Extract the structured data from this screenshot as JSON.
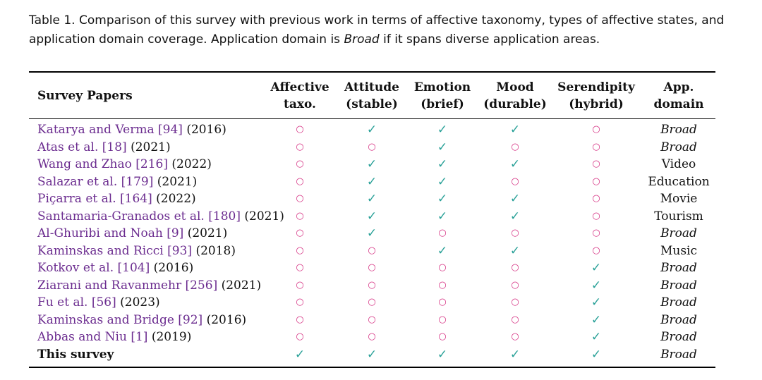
{
  "caption": {
    "part1": "Table 1.  Comparison of this survey with previous work in terms of affective taxonomy, types of affective states, and application domain coverage. Application domain is ",
    "emph": "Broad",
    "part2": " if it spans diverse application areas."
  },
  "colors": {
    "check": "#2aa198",
    "circle": "#d63384",
    "citation": "#6b2c8f"
  },
  "symbols": {
    "check": "✓",
    "circle": "○"
  },
  "headers": {
    "paper": "Survey Papers",
    "columns": [
      {
        "line1": "Affective",
        "line2": "taxo."
      },
      {
        "line1": "Attitude",
        "line2": "(stable)"
      },
      {
        "line1": "Emotion",
        "line2": "(brief)"
      },
      {
        "line1": "Mood",
        "line2": "(durable)"
      },
      {
        "line1": "Serendipity",
        "line2": "(hybrid)"
      },
      {
        "line1": "App.",
        "line2": "domain"
      }
    ]
  },
  "rows": [
    {
      "name": "Katarya and Verma",
      "ref": "[94]",
      "year": "(2016)",
      "marks": [
        false,
        true,
        true,
        true,
        false
      ],
      "domain": "Broad",
      "italic": true
    },
    {
      "name": "Atas et al.",
      "ref": "[18]",
      "year": "(2021)",
      "marks": [
        false,
        false,
        true,
        false,
        false
      ],
      "domain": "Broad",
      "italic": true
    },
    {
      "name": "Wang and Zhao",
      "ref": "[216]",
      "year": "(2022)",
      "marks": [
        false,
        true,
        true,
        true,
        false
      ],
      "domain": "Video",
      "italic": false
    },
    {
      "name": "Salazar et al.",
      "ref": "[179]",
      "year": "(2021)",
      "marks": [
        false,
        true,
        true,
        false,
        false
      ],
      "domain": "Education",
      "italic": false
    },
    {
      "name": "Piçarra et al.",
      "ref": "[164]",
      "year": "(2022)",
      "marks": [
        false,
        true,
        true,
        true,
        false
      ],
      "domain": "Movie",
      "italic": false
    },
    {
      "name": "Santamaria-Granados et al.",
      "ref": "[180]",
      "year": "(2021)",
      "marks": [
        false,
        true,
        true,
        true,
        false
      ],
      "domain": "Tourism",
      "italic": false
    },
    {
      "name": "Al-Ghuribi and Noah",
      "ref": "[9]",
      "year": "(2021)",
      "marks": [
        false,
        true,
        false,
        false,
        false
      ],
      "domain": "Broad",
      "italic": true
    },
    {
      "name": "Kaminskas and Ricci",
      "ref": "[93]",
      "year": "(2018)",
      "marks": [
        false,
        false,
        true,
        true,
        false
      ],
      "domain": "Music",
      "italic": false
    },
    {
      "name": "Kotkov et al.",
      "ref": "[104]",
      "year": "(2016)",
      "marks": [
        false,
        false,
        false,
        false,
        true
      ],
      "domain": "Broad",
      "italic": true
    },
    {
      "name": "Ziarani and Ravanmehr",
      "ref": "[256]",
      "year": "(2021)",
      "marks": [
        false,
        false,
        false,
        false,
        true
      ],
      "domain": "Broad",
      "italic": true
    },
    {
      "name": "Fu et al.",
      "ref": "[56]",
      "year": "(2023)",
      "marks": [
        false,
        false,
        false,
        false,
        true
      ],
      "domain": "Broad",
      "italic": true
    },
    {
      "name": "Kaminskas and Bridge",
      "ref": "[92]",
      "year": "(2016)",
      "marks": [
        false,
        false,
        false,
        false,
        true
      ],
      "domain": "Broad",
      "italic": true
    },
    {
      "name": "Abbas and Niu",
      "ref": "[1]",
      "year": "(2019)",
      "marks": [
        false,
        false,
        false,
        false,
        true
      ],
      "domain": "Broad",
      "italic": true
    },
    {
      "name": "This survey",
      "ref": "",
      "year": "",
      "marks": [
        true,
        true,
        true,
        true,
        true
      ],
      "domain": "Broad",
      "italic": true,
      "self": true
    }
  ]
}
